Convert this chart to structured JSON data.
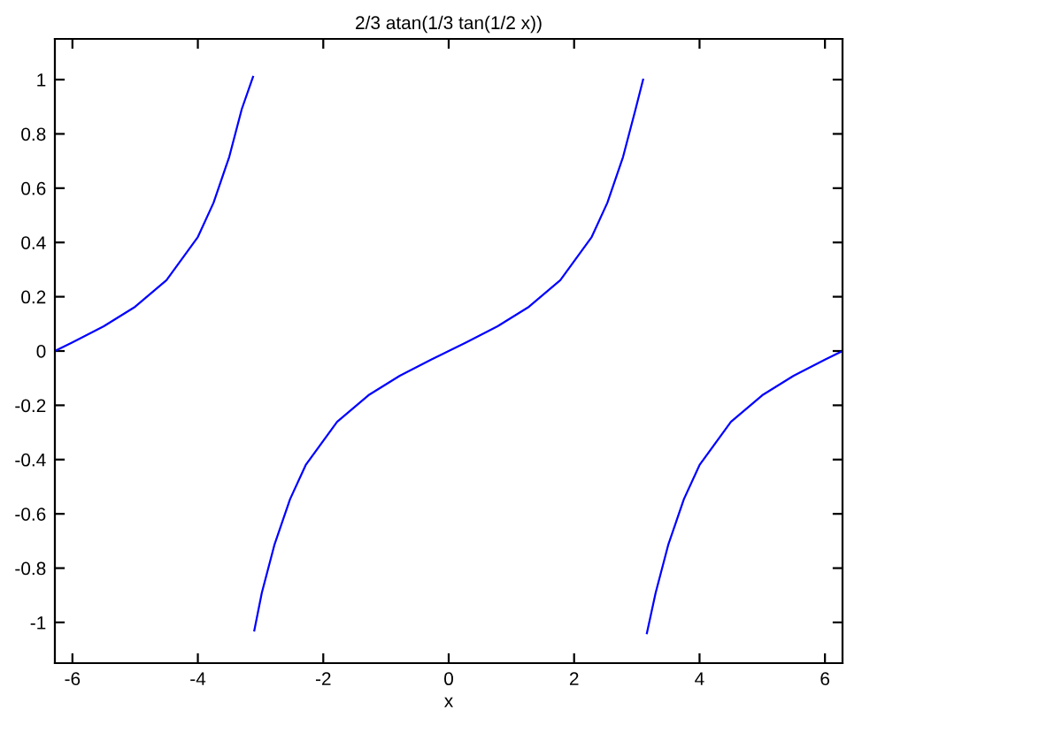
{
  "chart_data": {
    "type": "line",
    "title": "2/3 atan(1/3 tan(1/2 x))",
    "xlabel": "x",
    "x": [
      -6.28,
      -6,
      -5.5,
      -5,
      -4.5,
      -4,
      -3.75,
      -3.5,
      -3.3,
      -3.12,
      -3.11,
      -3.1,
      -2.98,
      -2.78,
      -2.53,
      -2.28,
      -1.78,
      -1.28,
      -0.78,
      -0.28,
      0,
      0.28,
      0.78,
      1.28,
      1.78,
      2.28,
      2.53,
      2.78,
      2.98,
      3.1,
      3.13,
      3.16,
      3.3,
      3.5,
      3.75,
      4,
      4.5,
      5,
      5.5,
      6,
      6.28
    ],
    "series": [
      {
        "color": "#0000ff",
        "values": [
          0,
          0.032,
          0.091,
          0.163,
          0.261,
          0.42,
          0.546,
          0.715,
          0.891,
          1.01,
          null,
          -1.03,
          -0.891,
          -0.715,
          -0.546,
          -0.42,
          -0.261,
          -0.163,
          -0.091,
          -0.032,
          0,
          0.032,
          0.091,
          0.163,
          0.261,
          0.42,
          0.546,
          0.715,
          0.891,
          1.0,
          null,
          -1.04,
          -0.891,
          -0.715,
          -0.546,
          -0.42,
          -0.261,
          -0.163,
          -0.091,
          -0.032,
          0
        ]
      }
    ],
    "xlim": [
      -6.28,
      6.28
    ],
    "ylim": [
      -1.15,
      1.15
    ],
    "xticks": [
      -6,
      -4,
      -2,
      0,
      2,
      4,
      6
    ],
    "yticks": [
      -1,
      -0.8,
      -0.6,
      -0.4,
      -0.2,
      0,
      0.2,
      0.4,
      0.6,
      0.8,
      1
    ],
    "grid": false,
    "legend": false,
    "marker": "none",
    "line_style": "solid"
  }
}
